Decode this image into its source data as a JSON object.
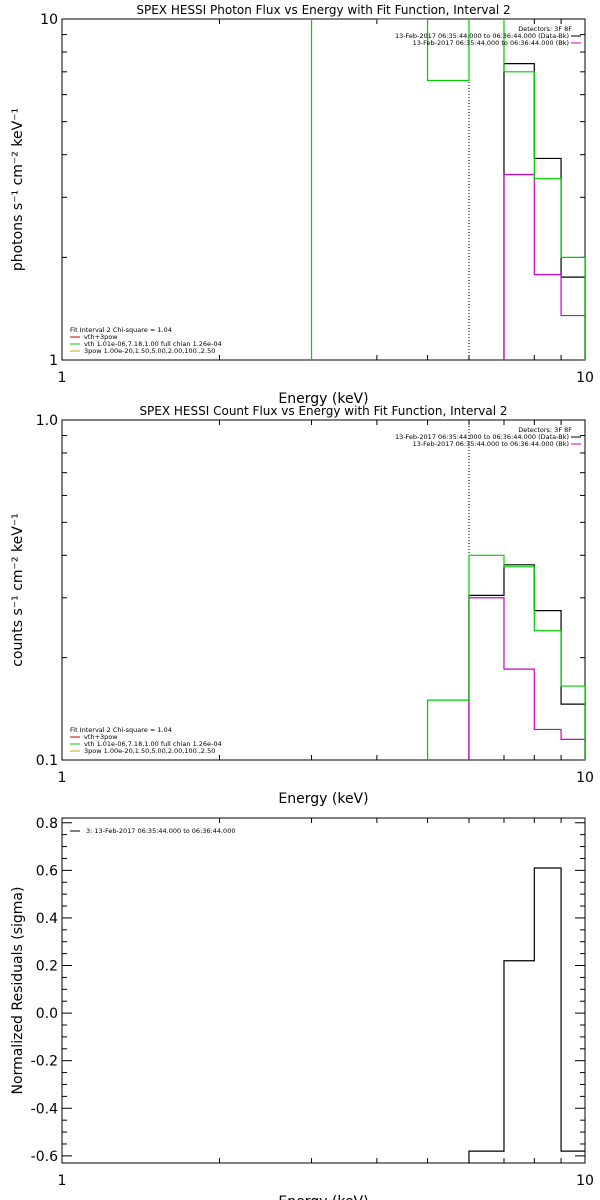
{
  "chart_data": [
    {
      "type": "line",
      "title": "SPEX HESSI Photon Flux vs Energy with Fit Function, Interval 2",
      "xlabel": "Energy (keV)",
      "ylabel": "photons s⁻¹ cm⁻² keV⁻¹",
      "xscale": "log",
      "yscale": "log",
      "xlim": [
        1,
        10
      ],
      "ylim": [
        1,
        10
      ],
      "xticks": [
        "1",
        "10"
      ],
      "yticks": [
        "1",
        "10"
      ],
      "legend_top": {
        "header": "Detectors: 3F 8F",
        "entries": [
          {
            "text": "13-Feb-2017 06:35:44.000 to 06:36:44.000 (Data-Bk)",
            "color": "#000000"
          },
          {
            "text": "13-Feb-2017 06:35:44.000 to 06:36:44.000 (Bk)",
            "color": "#cc00cc"
          }
        ]
      },
      "legend_bottom": {
        "header": "Fit Interval 2   Chi-square = 1.04",
        "entries": [
          {
            "text": "vth+3pow",
            "color": "#cc0000"
          },
          {
            "text": "vth 1.01e-06,7.18,1.00  full chian 1.26e-04",
            "color": "#00cc00"
          },
          {
            "text": "3pow 1.00e-20,1.50,5.00,2.00,100.,2.50",
            "color": "#d4a000"
          }
        ]
      },
      "marker_energy": 6.0,
      "series": [
        {
          "role": "data",
          "color": "#000000",
          "edges": [
            7,
            8,
            9,
            10
          ],
          "values": [
            7.4,
            3.9,
            1.75
          ]
        },
        {
          "role": "background",
          "color": "#cc00cc",
          "edges": [
            7,
            8,
            9,
            10
          ],
          "values": [
            3.5,
            1.78,
            1.35
          ]
        },
        {
          "role": "fit",
          "color": "#00cc00",
          "edges": [
            3,
            4,
            5,
            6,
            7,
            8,
            9,
            10
          ],
          "values": [
            10.5,
            10.0,
            6.6,
            10.5,
            7.0,
            3.4,
            2.0
          ]
        }
      ]
    },
    {
      "type": "line",
      "title": "SPEX HESSI Count Flux vs Energy with Fit Function, Interval 2",
      "xlabel": "Energy (keV)",
      "ylabel": "counts s⁻¹ cm⁻² keV⁻¹",
      "xscale": "log",
      "yscale": "log",
      "xlim": [
        1,
        10
      ],
      "ylim": [
        0.1,
        1.0
      ],
      "xticks": [
        "1",
        "10"
      ],
      "yticks": [
        "0.1",
        "1.0"
      ],
      "legend_top": {
        "header": "Detectors: 3F 8F",
        "entries": [
          {
            "text": "13-Feb-2017 06:35:44.000 to 06:36:44.000 (Data-Bk)",
            "color": "#000000"
          },
          {
            "text": "13-Feb-2017 06:35:44.000 to 06:36:44.000 (Bk)",
            "color": "#cc00cc"
          }
        ]
      },
      "legend_bottom": {
        "header": "Fit Interval 2   Chi-square = 1.04",
        "entries": [
          {
            "text": "vth+3pow",
            "color": "#cc0000"
          },
          {
            "text": "vth 1.01e-06,7.18,1.00  full chian 1.26e-04",
            "color": "#00cc00"
          },
          {
            "text": "3pow 1.00e-20,1.50,5.00,2.00,100.,2.50",
            "color": "#d4a000"
          }
        ]
      },
      "marker_energy": 6.0,
      "series": [
        {
          "role": "data",
          "color": "#000000",
          "edges": [
            6,
            7,
            8,
            9,
            10
          ],
          "values": [
            0.305,
            0.375,
            0.275,
            0.146
          ]
        },
        {
          "role": "background",
          "color": "#cc00cc",
          "edges": [
            6,
            7,
            8,
            9,
            10
          ],
          "values": [
            0.3,
            0.185,
            0.123,
            0.115
          ]
        },
        {
          "role": "fit",
          "color": "#00cc00",
          "edges": [
            5,
            6,
            7,
            8,
            9,
            10
          ],
          "values": [
            0.15,
            0.4,
            0.37,
            0.24,
            0.165
          ]
        }
      ]
    },
    {
      "type": "line",
      "title": "",
      "xlabel": "Energy (keV)",
      "ylabel": "Normalized Residuals (sigma)",
      "xscale": "log",
      "yscale": "linear",
      "xlim": [
        1,
        10
      ],
      "ylim": [
        -0.63,
        0.82
      ],
      "xticks": [
        "1",
        "10"
      ],
      "yticks": [
        "-0.6",
        "-0.4",
        "-0.2",
        "0.0",
        "0.2",
        "0.4",
        "0.6",
        "0.8"
      ],
      "legend_top": {
        "header": "",
        "entries": [
          {
            "text": "3: 13-Feb-2017 06:35:44.000 to 06:36:44.000",
            "color": "#000000"
          }
        ]
      },
      "series": [
        {
          "role": "residuals",
          "color": "#000000",
          "edges": [
            6,
            7,
            8,
            9,
            10
          ],
          "values": [
            -0.58,
            0.22,
            0.61,
            -0.58
          ]
        }
      ]
    }
  ]
}
